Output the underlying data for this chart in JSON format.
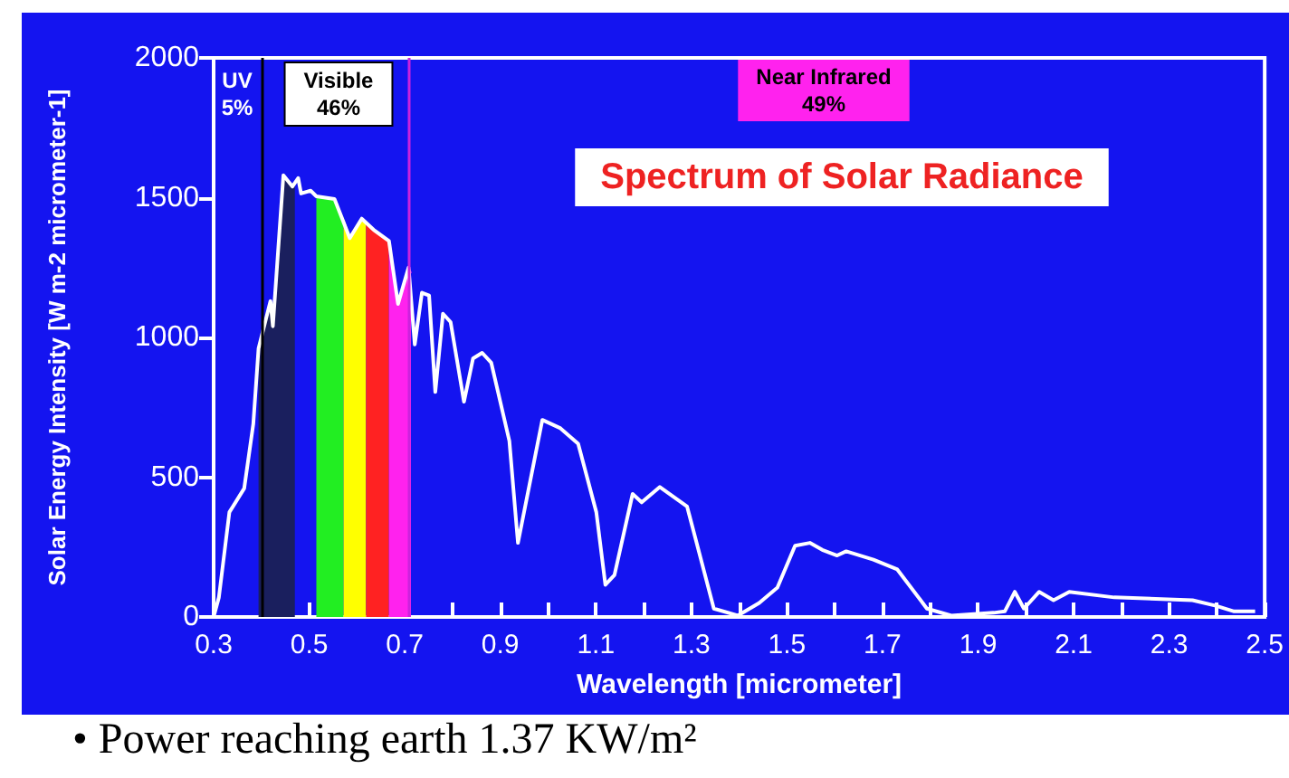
{
  "chart_data": {
    "type": "line",
    "title": "Spectrum of Solar Radiance",
    "xlabel": "Wavelength [micrometer]",
    "ylabel": "Solar Energy Intensity [W m-2 micrometer-1]",
    "series": [
      {
        "color": "#ffffff",
        "x": [
          0.3,
          0.311,
          0.333,
          0.364,
          0.383,
          0.394,
          0.419,
          0.424,
          0.446,
          0.465,
          0.477,
          0.483,
          0.503,
          0.515,
          0.553,
          0.585,
          0.61,
          0.635,
          0.667,
          0.686,
          0.708,
          0.721,
          0.736,
          0.751,
          0.764,
          0.78,
          0.796,
          0.824,
          0.843,
          0.862,
          0.881,
          0.919,
          0.937,
          0.988,
          1.026,
          1.063,
          1.101,
          1.12,
          1.139,
          1.177,
          1.196,
          1.234,
          1.291,
          1.347,
          1.397,
          1.442,
          1.48,
          1.517,
          1.548,
          1.574,
          1.605,
          1.624,
          1.681,
          1.731,
          1.793,
          1.844,
          1.933,
          1.956,
          1.977,
          1.996,
          2.028,
          2.058,
          2.091,
          2.185,
          2.349,
          2.398,
          2.436,
          2.48
        ],
        "values": [
          0,
          70,
          375,
          460,
          690,
          960,
          1130,
          1040,
          1580,
          1540,
          1570,
          1515,
          1525,
          1505,
          1495,
          1355,
          1425,
          1385,
          1345,
          1120,
          1250,
          975,
          1160,
          1150,
          805,
          1085,
          1055,
          770,
          925,
          945,
          910,
          630,
          265,
          705,
          675,
          620,
          375,
          115,
          150,
          440,
          410,
          465,
          395,
          30,
          5,
          50,
          105,
          255,
          265,
          240,
          220,
          235,
          205,
          170,
          30,
          5,
          15,
          20,
          90,
          30,
          90,
          60,
          90,
          70,
          60,
          40,
          20,
          20
        ]
      },
      {
        "type": "area",
        "color": "#1a1f5e",
        "x": [
          0.394,
          0.419,
          0.424,
          0.446,
          0.465,
          0.47
        ],
        "values": [
          960,
          1130,
          1040,
          1580,
          1540,
          1550
        ]
      },
      {
        "type": "area",
        "color": "#22ee22",
        "x": [
          0.515,
          0.553,
          0.572
        ],
        "values": [
          1505,
          1495,
          1420
        ]
      },
      {
        "type": "area",
        "color": "#ffff00",
        "x": [
          0.572,
          0.585,
          0.61,
          0.619
        ],
        "values": [
          1420,
          1355,
          1425,
          1410
        ]
      },
      {
        "type": "area",
        "color": "#ff2222",
        "x": [
          0.619,
          0.635,
          0.667
        ],
        "values": [
          1410,
          1385,
          1345
        ]
      },
      {
        "type": "area",
        "color": "#ff22ee",
        "x": [
          0.667,
          0.686,
          0.708,
          0.713
        ],
        "values": [
          1345,
          1120,
          1250,
          1230
        ]
      }
    ],
    "ref_lines": [
      {
        "axis": "x",
        "value": 0.4,
        "color": "#000000"
      },
      {
        "axis": "x",
        "value": 0.71,
        "color": "#cc22dd"
      }
    ],
    "annotations": [
      "UV\n5%",
      "Visible\n46%",
      "Near Infrared\n49%",
      "• Power reaching earth 1.37 KW/m²"
    ],
    "xlim": [
      0.3,
      2.5
    ],
    "ylim": [
      0,
      2000
    ],
    "xticks": [
      0.3,
      {
        "value": 0.4,
        "label": null
      },
      0.5,
      {
        "value": 0.6,
        "label": null
      },
      0.7,
      {
        "value": 0.8,
        "label": null
      },
      0.9,
      {
        "value": 1.0,
        "label": null
      },
      1.1,
      {
        "value": 1.2,
        "label": null
      },
      1.3,
      {
        "value": 1.4,
        "label": null
      },
      1.5,
      {
        "value": 1.6,
        "label": null
      },
      1.7,
      {
        "value": 1.8,
        "label": null
      },
      1.9,
      {
        "value": 2.0,
        "label": null
      },
      2.1,
      {
        "value": 2.2,
        "label": null
      },
      2.3,
      {
        "value": 2.4,
        "label": null
      },
      2.5
    ],
    "yticks": [
      0,
      500,
      1000,
      1500,
      2000
    ],
    "grid": false,
    "marker": "none",
    "line_style": "solid"
  }
}
